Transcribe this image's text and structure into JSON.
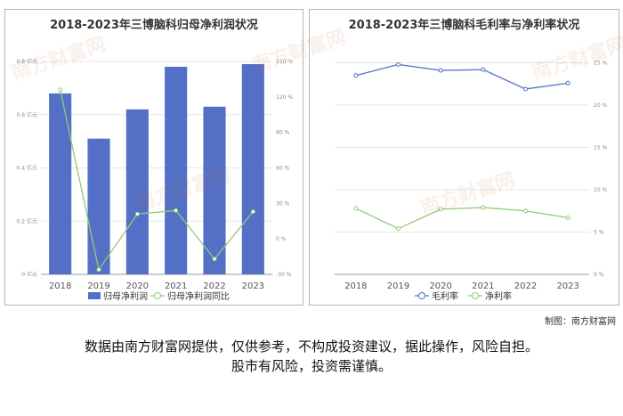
{
  "watermark": "南方财富网",
  "credit": "制图：南方财富网",
  "disclaimer": {
    "line1": "数据由南方财富网提供，仅供参考，不构成投资建议，据此操作，风险自担。",
    "line2": "股市有风险，投资需谨慎。"
  },
  "chart_data": [
    {
      "type": "bar",
      "title": "2018-2023年三博脑科归母净利润状况",
      "categories": [
        "2018",
        "2019",
        "2020",
        "2021",
        "2022",
        "2023"
      ],
      "series": [
        {
          "name": "归母净利润",
          "type": "bar",
          "axis": "left",
          "color": "#5470c6",
          "values": [
            0.68,
            0.51,
            0.62,
            0.78,
            0.63,
            0.79
          ]
        },
        {
          "name": "归母净利润同比",
          "type": "line",
          "axis": "right",
          "color": "#91cc75",
          "values": [
            126,
            -26,
            21,
            24,
            -17,
            23
          ]
        }
      ],
      "y_left": {
        "ticks": [
          0,
          0.2,
          0.4,
          0.6,
          0.8
        ],
        "labels": [
          "0 亿元",
          "0.2 亿元",
          "0.4 亿元",
          "0.6 亿元",
          "0.8 亿元"
        ],
        "min": 0,
        "max": 0.8
      },
      "y_right": {
        "ticks": [
          -30,
          0,
          30,
          60,
          90,
          120,
          150
        ],
        "labels": [
          "-30 %",
          "0 %",
          "30 %",
          "60 %",
          "90 %",
          "120 %",
          "150 %"
        ],
        "min": -30,
        "max": 150
      },
      "legend": "bottom",
      "grid": true
    },
    {
      "type": "line",
      "title": "2018-2023年三博脑科毛利率与净利率状况",
      "categories": [
        "2018",
        "2019",
        "2020",
        "2021",
        "2022",
        "2023"
      ],
      "series": [
        {
          "name": "毛利率",
          "color": "#5470c6",
          "values": [
            23.5,
            24.8,
            24.1,
            24.2,
            21.9,
            22.6
          ]
        },
        {
          "name": "净利率",
          "color": "#91cc75",
          "values": [
            7.8,
            5.4,
            7.7,
            7.9,
            7.5,
            6.7
          ]
        }
      ],
      "y_right": {
        "ticks": [
          0,
          5,
          10,
          15,
          20,
          25
        ],
        "labels": [
          "0 %",
          "5 %",
          "10 %",
          "15 %",
          "20 %",
          "25 %"
        ],
        "min": 0,
        "max": 26
      },
      "legend": "bottom",
      "grid": true
    }
  ]
}
